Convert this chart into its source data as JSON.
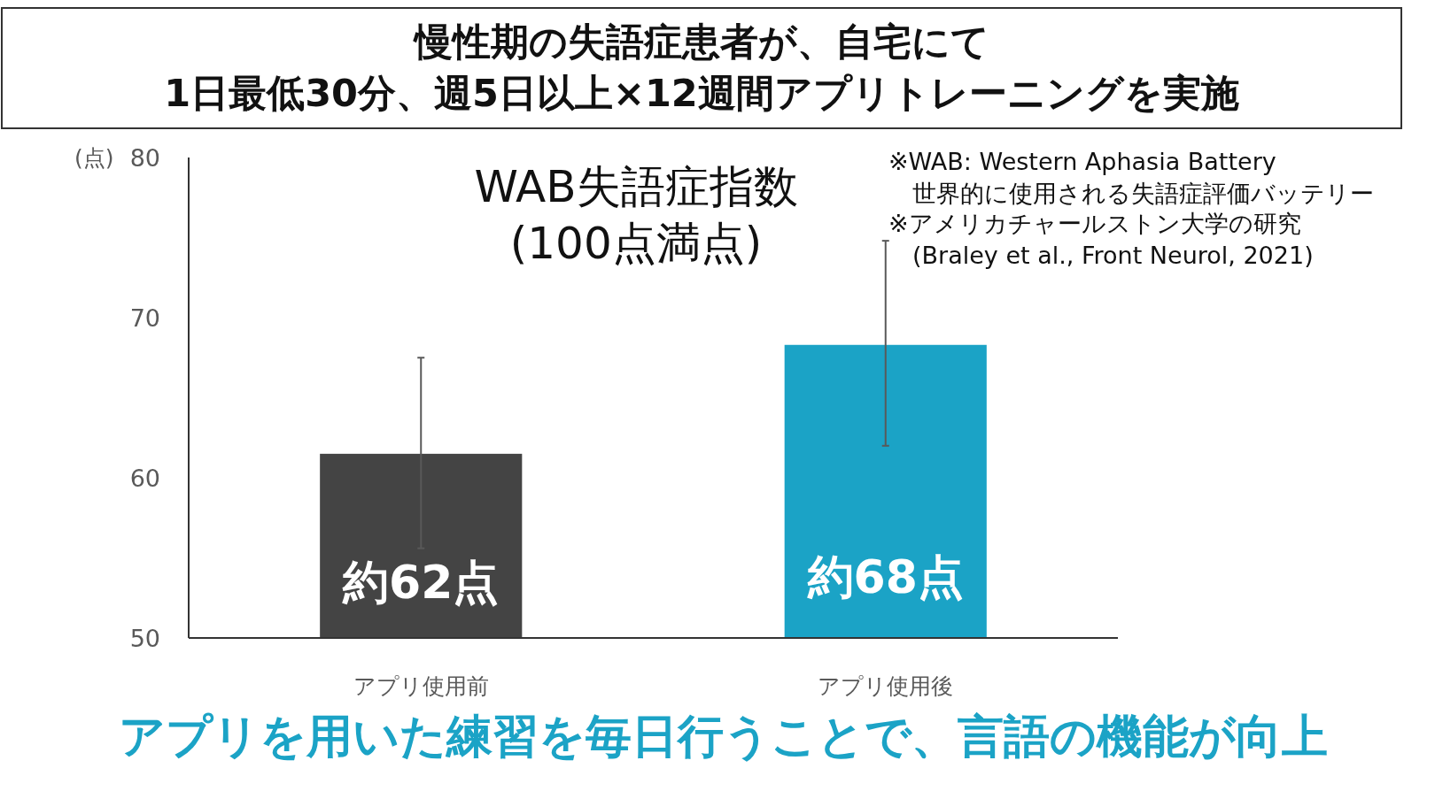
{
  "chart_data": {
    "type": "bar",
    "title": "慢性期の失語症患者が、自宅にて\n1日最低30分、週5日以上×12週間アプリトレーニングを実施",
    "subtitle": "WAB失語症指数\n(100点満点)",
    "ylabel": "(点)",
    "categories": [
      "アプリ使用前",
      "アプリ使用後"
    ],
    "values": [
      61.5,
      68.3
    ],
    "colors": [
      "#444444",
      "#1ba3c6"
    ],
    "errors": [
      [
        55.6,
        67.5
      ],
      [
        62.0,
        74.8
      ]
    ],
    "value_labels": [
      "約62点",
      "約68点"
    ],
    "ylim": [
      50,
      80
    ],
    "yticks": [
      50,
      60,
      70,
      80
    ],
    "grid": false,
    "annotations": [
      "※WAB: Western Aphasia Battery\n　世界的に使用される失語症評価バッテリー",
      "※アメリカチャールストン大学の研究\n　(Braley et al., Front Neurol, 2021)",
      "アプリを用いた練習を毎日行うことで、言語の機能が向上"
    ]
  }
}
